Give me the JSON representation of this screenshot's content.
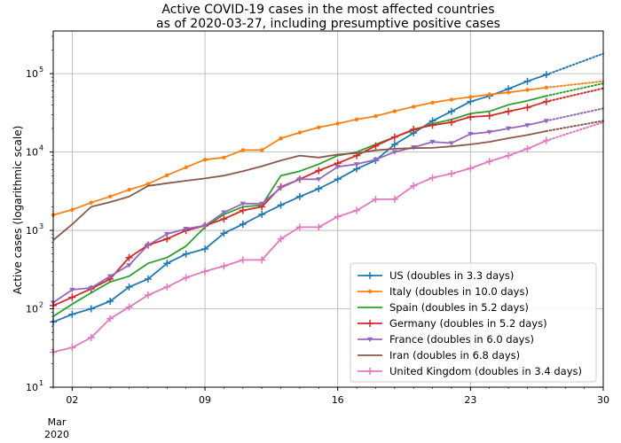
{
  "chart_data": {
    "type": "line",
    "title_lines": [
      "Active COVID-19 cases in the most affected countries",
      "as of 2020-03-27, including presumptive positive cases"
    ],
    "ylabel": "Active cases (logarithmic scale)",
    "y_scale": "log",
    "ylim": [
      10,
      350000
    ],
    "xlim": [
      1,
      30
    ],
    "grid": true,
    "x_ticks": [
      {
        "value": 2,
        "label": "02"
      },
      {
        "value": 9,
        "label": "09"
      },
      {
        "value": 16,
        "label": "16"
      },
      {
        "value": 23,
        "label": "23"
      },
      {
        "value": 30,
        "label": "30"
      }
    ],
    "x_period_label": [
      "Mar",
      "2020"
    ],
    "y_ticks": [
      {
        "value": 10,
        "base": "10",
        "exp": "1"
      },
      {
        "value": 100,
        "base": "10",
        "exp": "2"
      },
      {
        "value": 1000,
        "base": "10",
        "exp": "3"
      },
      {
        "value": 10000,
        "base": "10",
        "exp": "4"
      },
      {
        "value": 100000,
        "base": "10",
        "exp": "5"
      }
    ],
    "legend_position": "lower-right",
    "projection_to_day": 30,
    "series": [
      {
        "name": "US (doubles in 3.3 days)",
        "color": "#1f77b4",
        "marker": "plus",
        "x": [
          1,
          2,
          3,
          4,
          5,
          6,
          7,
          8,
          9,
          10,
          11,
          12,
          13,
          14,
          15,
          16,
          17,
          18,
          19,
          20,
          21,
          22,
          23,
          24,
          25,
          26,
          27
        ],
        "y": [
          68,
          85,
          100,
          125,
          190,
          240,
          380,
          500,
          580,
          920,
          1200,
          1600,
          2100,
          2700,
          3400,
          4500,
          6100,
          7800,
          12500,
          17500,
          25000,
          33000,
          44000,
          52000,
          64000,
          80000,
          97000
        ],
        "projection_end": 180000
      },
      {
        "name": "Italy (doubles in 10.0 days)",
        "color": "#ff7f0e",
        "marker": "dot",
        "x": [
          1,
          2,
          3,
          4,
          5,
          6,
          7,
          8,
          9,
          10,
          11,
          12,
          13,
          14,
          15,
          16,
          17,
          18,
          19,
          20,
          21,
          22,
          23,
          24,
          25,
          26,
          27
        ],
        "y": [
          1577,
          1835,
          2263,
          2706,
          3296,
          3916,
          5061,
          6387,
          7985,
          8514,
          10590,
          10590,
          14955,
          17750,
          20603,
          23073,
          26062,
          28710,
          33190,
          37860,
          42681,
          46638,
          50418,
          54030,
          57521,
          62013,
          66414
        ],
        "projection_end": 80000
      },
      {
        "name": "Spain (doubles in 5.2 days)",
        "color": "#2ca02c",
        "marker": "none",
        "x": [
          1,
          2,
          3,
          4,
          5,
          6,
          7,
          8,
          9,
          10,
          11,
          12,
          13,
          14,
          15,
          16,
          17,
          18,
          19,
          20,
          21,
          22,
          23,
          24,
          25,
          26,
          27
        ],
        "y": [
          80,
          115,
          160,
          220,
          260,
          380,
          450,
          630,
          1100,
          1600,
          2000,
          2100,
          5000,
          5700,
          7000,
          9000,
          10000,
          12500,
          15500,
          19000,
          23000,
          26000,
          31000,
          33000,
          40000,
          45000,
          52000
        ],
        "projection_end": 75000
      },
      {
        "name": "Germany (doubles in 5.2 days)",
        "color": "#d62728",
        "marker": "plus",
        "x": [
          1,
          2,
          3,
          4,
          5,
          6,
          7,
          8,
          9,
          10,
          11,
          12,
          13,
          14,
          15,
          16,
          17,
          18,
          19,
          20,
          21,
          22,
          23,
          24,
          25,
          26,
          27
        ],
        "y": [
          110,
          140,
          180,
          240,
          450,
          650,
          780,
          1000,
          1150,
          1400,
          1800,
          2000,
          3600,
          4500,
          5800,
          7200,
          9000,
          12000,
          15500,
          19500,
          22000,
          24000,
          28000,
          29000,
          33000,
          37000,
          44000
        ],
        "projection_end": 65000
      },
      {
        "name": "France (doubles in 6.0 days)",
        "color": "#9467bd",
        "marker": "tri",
        "x": [
          1,
          2,
          3,
          4,
          5,
          6,
          7,
          8,
          9,
          10,
          11,
          12,
          13,
          14,
          15,
          16,
          17,
          18,
          19,
          20,
          21,
          22,
          23,
          24,
          25,
          26,
          27
        ],
        "y": [
          120,
          175,
          185,
          260,
          360,
          650,
          900,
          1050,
          1150,
          1700,
          2200,
          2200,
          3500,
          4500,
          4500,
          6500,
          7000,
          8000,
          10000,
          11500,
          13500,
          13000,
          17000,
          18000,
          20000,
          22000,
          25000
        ],
        "projection_end": 36000
      },
      {
        "name": "Iran (doubles in 6.8 days)",
        "color": "#8c564b",
        "marker": "none",
        "x": [
          1,
          2,
          3,
          4,
          5,
          6,
          7,
          8,
          9,
          10,
          11,
          12,
          13,
          14,
          15,
          16,
          17,
          18,
          19,
          20,
          21,
          22,
          23,
          24,
          25,
          26,
          27
        ],
        "y": [
          750,
          1200,
          2000,
          2300,
          2700,
          3700,
          4000,
          4300,
          4600,
          5000,
          5700,
          6600,
          7800,
          9000,
          8500,
          9300,
          9700,
          10500,
          11000,
          11200,
          11300,
          11800,
          12500,
          13500,
          15000,
          16500,
          18500
        ],
        "projection_end": 25000
      },
      {
        "name": "United Kingdom (doubles in 3.4 days)",
        "color": "#e377c2",
        "marker": "plus",
        "x": [
          1,
          2,
          3,
          4,
          5,
          6,
          7,
          8,
          9,
          10,
          11,
          12,
          13,
          14,
          15,
          16,
          17,
          18,
          19,
          20,
          21,
          22,
          23,
          24,
          25,
          26,
          27
        ],
        "y": [
          28,
          32,
          43,
          75,
          105,
          150,
          190,
          250,
          300,
          350,
          420,
          420,
          780,
          1100,
          1100,
          1500,
          1800,
          2500,
          2500,
          3700,
          4700,
          5300,
          6200,
          7600,
          9000,
          11000,
          14000
        ],
        "projection_end": 24000
      }
    ]
  }
}
